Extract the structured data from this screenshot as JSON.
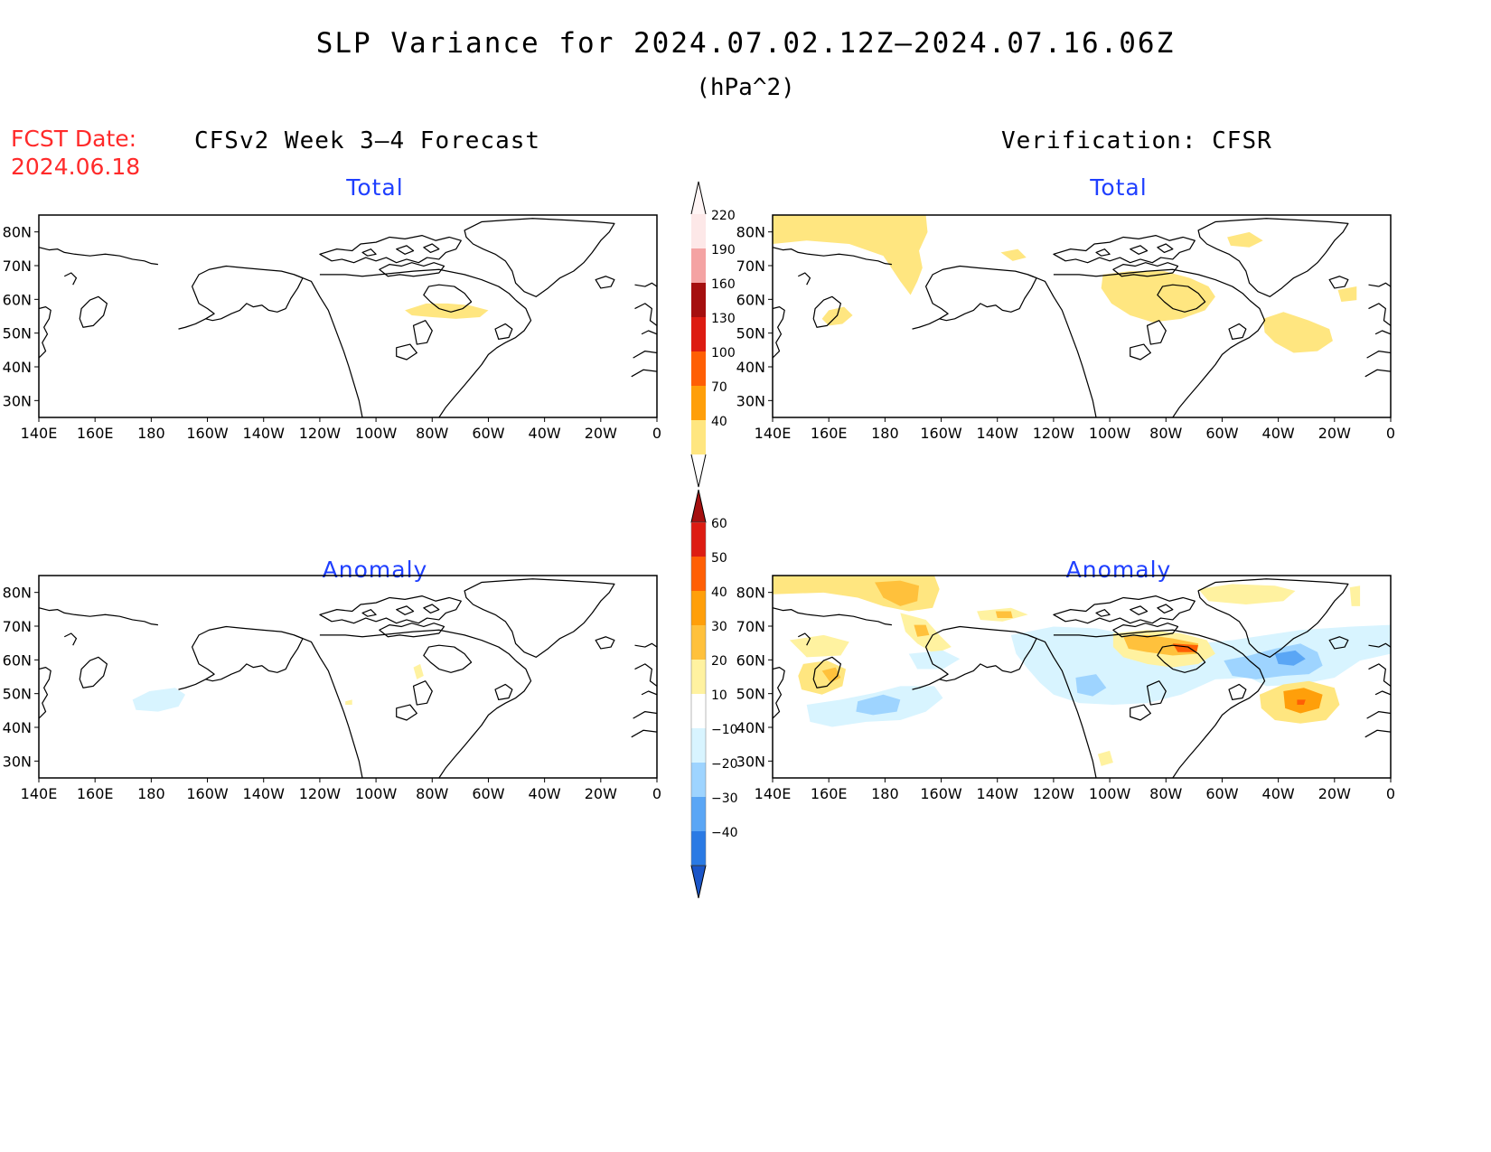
{
  "title": "SLP Variance for 2024.07.02.12Z–2024.07.16.06Z",
  "units": "(hPa^2)",
  "fcst_label": "FCST Date:",
  "fcst_date": "2024.06.18",
  "left_header": "CFSv2 Week 3–4 Forecast",
  "right_header": "Verification: CFSR",
  "total_label": "Total",
  "anomaly_label": "Anomaly",
  "lon_ticks": [
    "140E",
    "160E",
    "180",
    "160W",
    "140W",
    "120W",
    "100W",
    "80W",
    "60W",
    "40W",
    "20W",
    "0"
  ],
  "lat_ticks": [
    "80N",
    "70N",
    "60N",
    "50N",
    "40N",
    "30N"
  ],
  "total_scale": {
    "labels": [
      "220",
      "190",
      "160",
      "130",
      "100",
      "70",
      "40"
    ],
    "colors": [
      "#fde8e8",
      "#f4a3a3",
      "#a50f0f",
      "#dd1c12",
      "#ff5f05",
      "#ff9f0a",
      "#ffe680"
    ]
  },
  "anomaly_scale": {
    "labels": [
      "60",
      "50",
      "40",
      "30",
      "20",
      "10",
      "−10",
      "−20",
      "−30",
      "−40"
    ],
    "colors": [
      "#a50f0f",
      "#dd1c12",
      "#ff5f05",
      "#ff9f0a",
      "#ffc13c",
      "#fff2a0",
      "#ffffff",
      "#d8f4ff",
      "#9ed4ff",
      "#5aa6f5",
      "#2a7ae4",
      "#1a55c8"
    ]
  },
  "chart_data": [
    {
      "type": "map",
      "panel": "CFSv2 Week 3–4 Forecast — Total",
      "notable_region": "light yellow 40–70 hPa^2 band over Hudson Bay / Quebec (~50–55N, 95W–60W)"
    },
    {
      "type": "map",
      "panel": "Verification: CFSR — Total",
      "notable_region": "40–70 hPa^2 over Bering Strait & Arctic (70–85N, 140E–165W), Hudson Bay (50–65N, 95–60W), N Atlantic (35–50N, 45–20W)"
    },
    {
      "type": "map",
      "panel": "CFSv2 Week 3–4 Forecast — Anomaly",
      "notable_region": "weak −10 to 0 anomaly near 45N 180; small +10 spots near Hudson Bay"
    },
    {
      "type": "map",
      "panel": "Verification: CFSR — Anomaly",
      "notable_region": "+20 to +40 over Arctic/Bering (70–85N, 140E–160W) and N Atlantic (~45N, 25W); −20 to −30 near 45N 175E and 55N 30W"
    }
  ]
}
